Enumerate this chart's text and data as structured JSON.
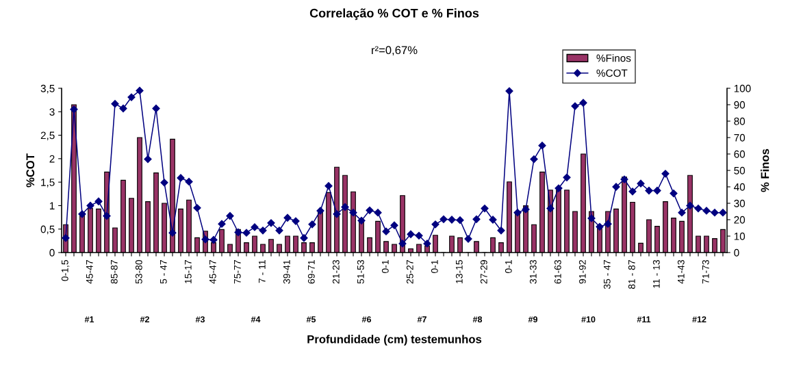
{
  "chart_data": {
    "type": "bar",
    "title": "Correlação % COT e % Finos",
    "subtitle": "r²=0,67%",
    "xlabel": "Profundidade (cm) testemunhos",
    "ylabel": "%COT",
    "y2label": "% Finos",
    "categories": [
      "0-1,5",
      null,
      null,
      "45-47",
      null,
      null,
      "85-87",
      null,
      null,
      "53-80",
      null,
      null,
      "5 - 47",
      null,
      null,
      "15-17",
      null,
      null,
      "45-47",
      null,
      null,
      "75-77",
      null,
      null,
      "7 - 11",
      null,
      null,
      "39-41",
      null,
      null,
      "69-71",
      null,
      null,
      "21-23",
      null,
      null,
      "51-53",
      null,
      null,
      "0-1",
      null,
      null,
      "25-27",
      null,
      null,
      "0-1",
      null,
      null,
      "13-15",
      null,
      null,
      "27-29",
      null,
      null,
      "0-1",
      null,
      null,
      "31-33",
      null,
      null,
      "61-63",
      null,
      null,
      "91-92",
      null,
      null,
      "35 - 47",
      null,
      null,
      "81 - 87",
      null,
      null,
      "11 - 13",
      null,
      null,
      "41-43",
      null,
      null,
      "71-73",
      null,
      null
    ],
    "series": [
      {
        "name": "%Finos",
        "axis": "y2",
        "color": "#993366",
        "values": [
          17,
          90,
          24,
          27,
          26.5,
          49,
          15,
          44,
          33,
          70,
          31,
          48.5,
          30,
          69,
          26.5,
          32,
          9,
          13,
          6,
          14,
          5,
          14,
          6,
          10,
          5,
          8,
          5,
          10,
          10,
          6,
          6,
          24.5,
          36.5,
          52,
          47,
          37,
          19,
          9,
          19,
          6.7,
          5,
          34.7,
          2.3,
          5,
          4,
          10.5,
          0,
          10,
          9,
          0,
          6.7,
          0,
          9,
          6,
          43,
          24,
          28.5,
          17,
          49,
          38,
          38,
          38,
          25,
          60,
          25,
          15,
          25,
          26.5,
          46,
          30.6,
          5.7,
          20,
          16,
          31,
          21,
          19,
          47,
          10,
          10,
          8.5,
          14
        ]
      },
      {
        "name": "%COT",
        "type": "line",
        "axis": "y",
        "color": "#000080",
        "marker": "diamond",
        "values": [
          0.31,
          3.05,
          0.82,
          1.0,
          1.09,
          0.78,
          3.17,
          3.07,
          3.31,
          3.45,
          1.99,
          3.07,
          1.49,
          0.42,
          1.59,
          1.51,
          0.95,
          0.28,
          0.27,
          0.61,
          0.78,
          0.43,
          0.42,
          0.54,
          0.47,
          0.63,
          0.47,
          0.74,
          0.67,
          0.31,
          0.6,
          0.89,
          1.42,
          0.82,
          0.97,
          0.85,
          0.68,
          0.9,
          0.85,
          0.45,
          0.58,
          0.19,
          0.39,
          0.36,
          0.19,
          0.6,
          0.71,
          0.7,
          0.69,
          0.29,
          0.71,
          0.94,
          0.7,
          0.47,
          3.44,
          0.85,
          0.92,
          1.99,
          2.28,
          0.94,
          1.37,
          1.6,
          3.12,
          3.19,
          0.73,
          0.55,
          0.61,
          1.4,
          1.56,
          1.3,
          1.47,
          1.32,
          1.32,
          1.68,
          1.26,
          0.85,
          1.0,
          0.94,
          0.89,
          0.85,
          0.85
        ]
      }
    ],
    "ylim": [
      0,
      3.5
    ],
    "yticks": [
      0,
      {
        "value": 0.5,
        "label": "0,5"
      },
      1,
      {
        "value": 1.5,
        "label": "1,5"
      },
      2,
      {
        "value": 2.5,
        "label": "2,5"
      },
      3,
      {
        "value": 3.5,
        "label": "3,5"
      }
    ],
    "y2lim": [
      0,
      100
    ],
    "y2ticks": [
      0,
      10,
      20,
      30,
      40,
      50,
      60,
      70,
      80,
      90,
      100
    ],
    "annotations": [
      "#1",
      "#2",
      "#3",
      "#4",
      "#5",
      "#6",
      "#7",
      "#8",
      "#9",
      "#10",
      "#11",
      "#12"
    ],
    "legend": "top right",
    "grid": false
  }
}
